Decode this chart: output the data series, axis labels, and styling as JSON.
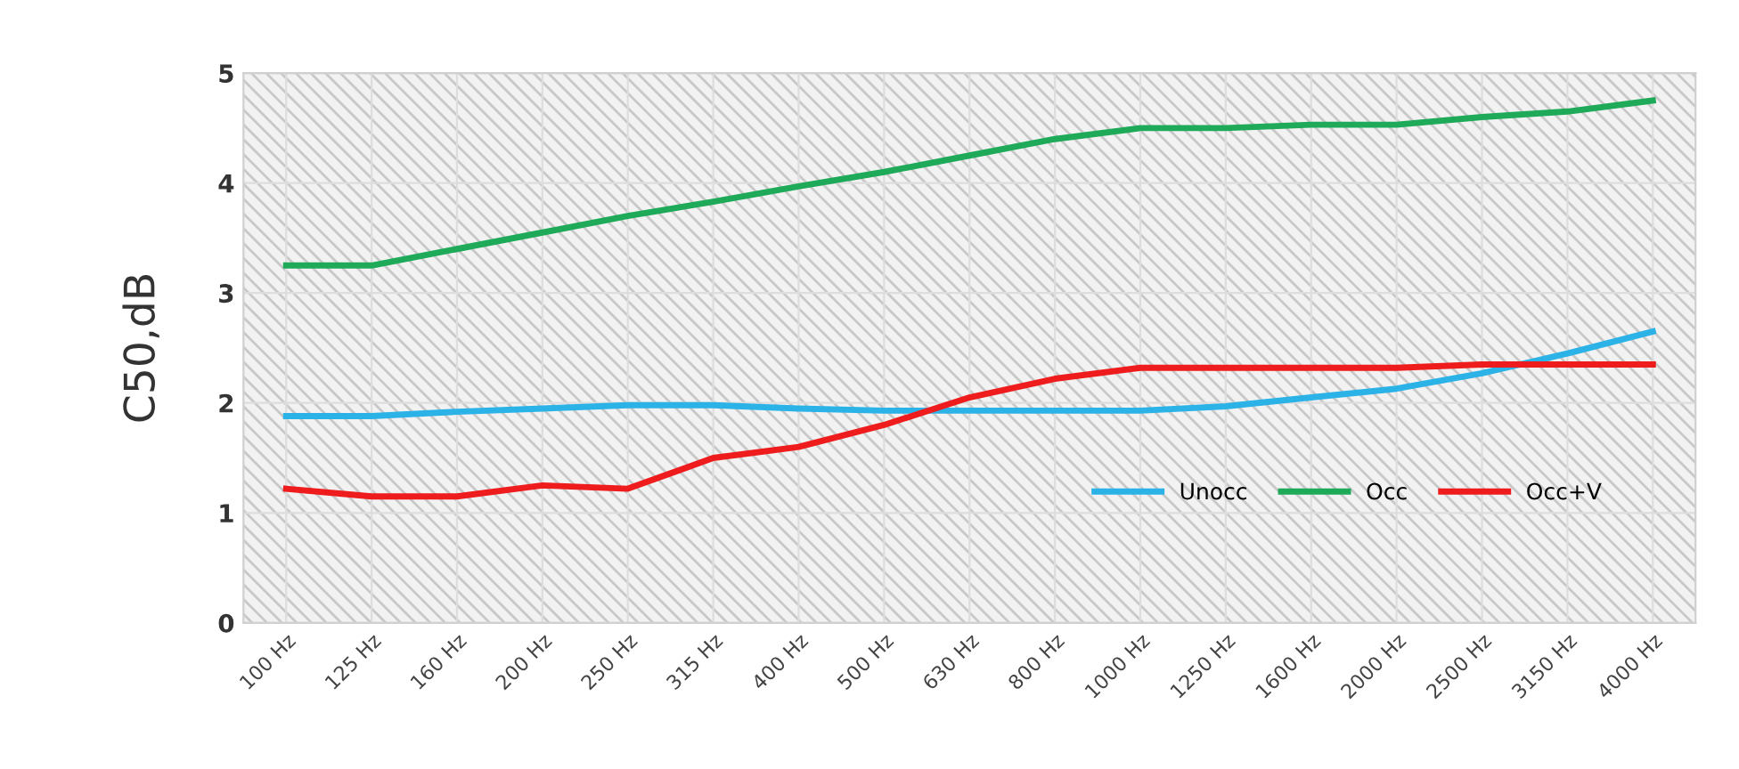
{
  "chart_data": {
    "type": "line",
    "ylabel": "C50,dB",
    "categories": [
      "100 Hz",
      "125 Hz",
      "160 Hz",
      "200 Hz",
      "250 Hz",
      "315 Hz",
      "400 Hz",
      "500 Hz",
      "630 Hz",
      "800 Hz",
      "1000 Hz",
      "1250 Hz",
      "1600 Hz",
      "2000 Hz",
      "2500 Hz",
      "3150 Hz",
      "4000 Hz"
    ],
    "series": [
      {
        "name": "Unocc",
        "color": "#2bb3e8",
        "values": [
          1.88,
          1.88,
          1.92,
          1.95,
          1.98,
          1.98,
          1.95,
          1.93,
          1.93,
          1.93,
          1.93,
          1.97,
          2.05,
          2.13,
          2.27,
          2.45,
          2.65
        ]
      },
      {
        "name": "Occ",
        "color": "#1faa5a",
        "values": [
          3.25,
          3.25,
          3.4,
          3.55,
          3.7,
          3.83,
          3.97,
          4.1,
          4.25,
          4.4,
          4.5,
          4.5,
          4.53,
          4.53,
          4.6,
          4.65,
          4.75
        ]
      },
      {
        "name": "Occ+V",
        "color": "#ee1c1c",
        "values": [
          1.22,
          1.15,
          1.15,
          1.25,
          1.22,
          1.5,
          1.6,
          1.8,
          2.05,
          2.22,
          2.32,
          2.32,
          2.32,
          2.32,
          2.35,
          2.35,
          2.35
        ]
      }
    ],
    "ylim": [
      0,
      5
    ],
    "yticks": [
      0,
      1,
      2,
      3,
      4,
      5
    ],
    "grid": true,
    "legend": "bottom right",
    "marker": "none",
    "line_style": "solid"
  }
}
